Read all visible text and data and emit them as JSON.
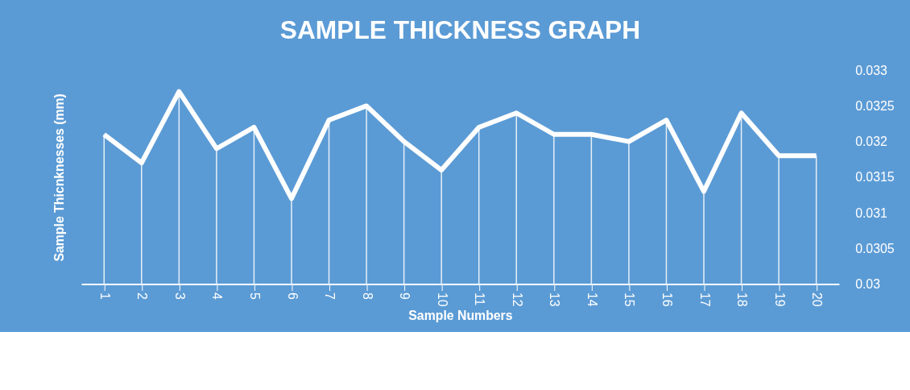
{
  "chart_data": {
    "type": "line",
    "title": "SAMPLE THICKNESS GRAPH",
    "xlabel": "Sample Numbers",
    "ylabel": "Sample Thicnknesses (mm)",
    "categories": [
      "1",
      "2",
      "3",
      "4",
      "5",
      "6",
      "7",
      "8",
      "9",
      "10",
      "11",
      "12",
      "13",
      "14",
      "15",
      "16",
      "17",
      "18",
      "19",
      "20"
    ],
    "series": [
      {
        "type": "bar",
        "color": "#ffffff",
        "values": [
          0.0321,
          0.0317,
          0.0327,
          0.0319,
          0.0322,
          0.0312,
          0.0323,
          0.0325,
          0.032,
          0.0316,
          0.0322,
          0.0324,
          0.0321,
          0.0321,
          0.032,
          0.0323,
          0.0313,
          0.0324,
          0.0318,
          0.0318
        ]
      },
      {
        "color": "#ffffff",
        "values": [
          0.0321,
          0.0317,
          0.0327,
          0.0319,
          0.0322,
          0.0312,
          0.0323,
          0.0325,
          0.032,
          0.0316,
          0.0322,
          0.0324,
          0.0321,
          0.0321,
          0.032,
          0.0323,
          0.0313,
          0.0324,
          0.0318,
          0.0318
        ]
      }
    ],
    "ylim": [
      0.03,
      0.033
    ],
    "yticks": [
      0.03,
      0.0305,
      0.031,
      0.0315,
      0.032,
      0.0325,
      0.033
    ],
    "grid": false,
    "marker": "none",
    "line_style": "solid"
  }
}
